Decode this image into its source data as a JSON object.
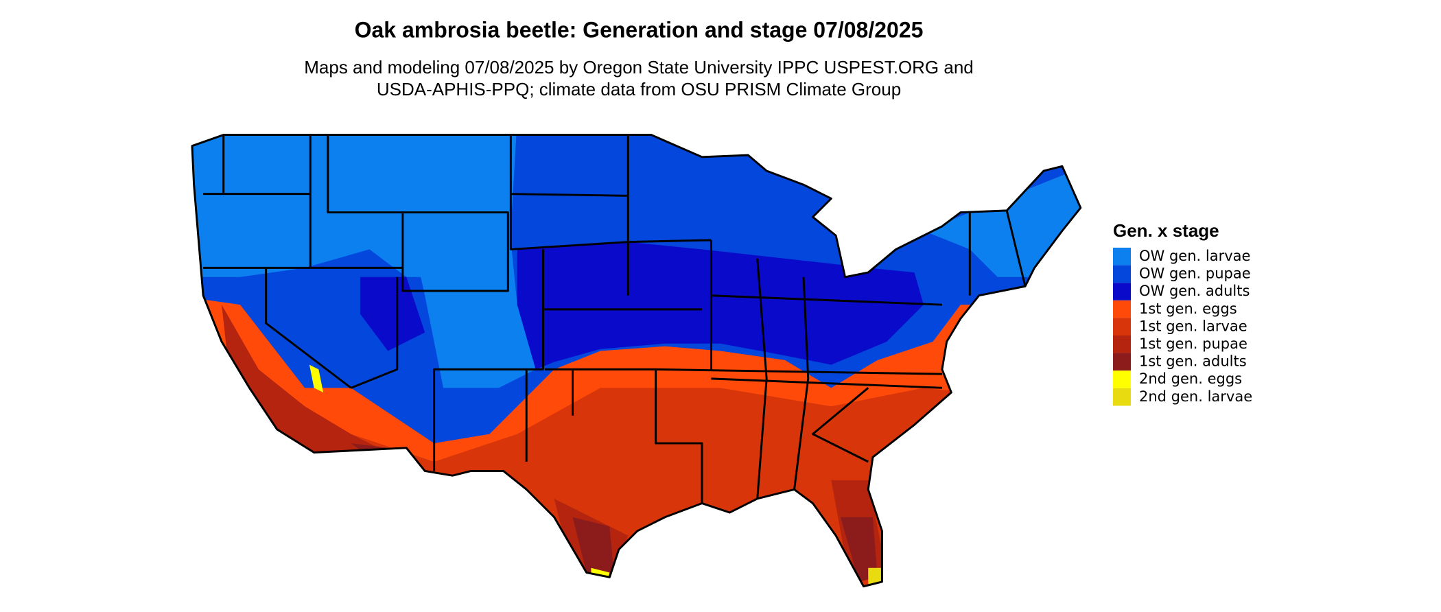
{
  "title": "Oak ambrosia beetle: Generation and stage 07/08/2025",
  "subtitle_lines": [
    "Maps and modeling 07/08/2025 by Oregon State University IPPC USPEST.ORG and",
    "USDA-APHIS-PPQ; climate data from OSU PRISM Climate Group"
  ],
  "legend": {
    "title": "Gen. x stage",
    "items": [
      {
        "label": "OW gen. larvae",
        "color": "#0d80f0"
      },
      {
        "label": "OW gen. pupae",
        "color": "#0447dc"
      },
      {
        "label": "OW gen. adults",
        "color": "#0a0acb"
      },
      {
        "label": "1st gen. eggs",
        "color": "#ff4a0a"
      },
      {
        "label": "1st gen. larvae",
        "color": "#d8360a"
      },
      {
        "label": "1st gen. pupae",
        "color": "#b4240f"
      },
      {
        "label": "1st gen. adults",
        "color": "#8c1c1c"
      },
      {
        "label": "2nd gen. eggs",
        "color": "#ffff00"
      },
      {
        "label": "2nd gen. larvae",
        "color": "#e8dc10"
      }
    ]
  }
}
